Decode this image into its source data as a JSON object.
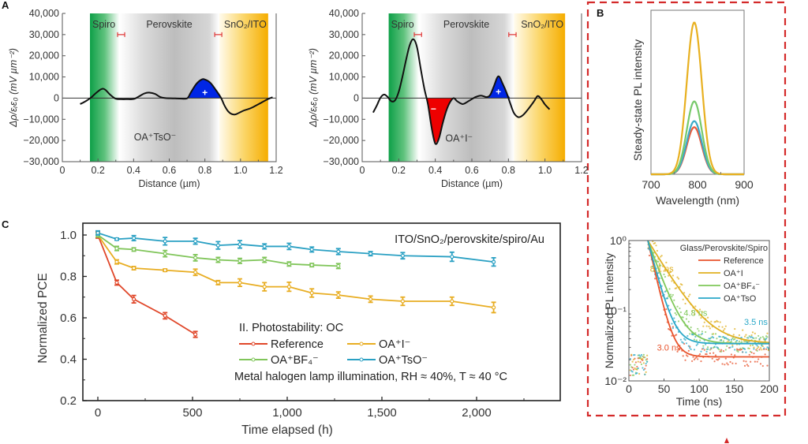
{
  "panels": {
    "A": "A",
    "B": "B",
    "C": "C"
  },
  "chart_data": [
    {
      "id": "A-left",
      "type": "line",
      "title": "",
      "xlabel": "Distance (µm)",
      "ylabel": "Δρ/εᵣε₀ (mV µm⁻²)",
      "xlim": [
        0,
        1.2
      ],
      "ylim": [
        -30000,
        40000
      ],
      "xticks": [
        "0",
        "0.2",
        "0.4",
        "0.6",
        "0.8",
        "1.0",
        "1.2"
      ],
      "yticks": [
        "40,000",
        "30,000",
        "20,000",
        "10,000",
        "0",
        "−10,000",
        "−20,000",
        "−30,000"
      ],
      "regions": [
        {
          "label": "Spiro",
          "from": 0.155,
          "to": 0.32,
          "color": "#1aa34a"
        },
        {
          "label": "Perovskite",
          "from": 0.32,
          "to": 0.88,
          "color": "#c8c8c8"
        },
        {
          "label": "SnO₂/ITO",
          "from": 0.88,
          "to": 1.155,
          "color": "#f5b800"
        }
      ],
      "error_bars": [
        {
          "x": 0.33,
          "y": 30000,
          "halfwidth": 0.02
        },
        {
          "x": 0.875,
          "y": 30000,
          "halfwidth": 0.02
        }
      ],
      "annotation": "OA⁺TsO⁻",
      "charge_labels": [
        {
          "text": "+",
          "x": 0.8,
          "y": 2500,
          "fill": "#0026e6"
        }
      ],
      "series": [
        {
          "name": "profile",
          "x": [
            0.1,
            0.13,
            0.16,
            0.19,
            0.22,
            0.24,
            0.27,
            0.3,
            0.33,
            0.36,
            0.4,
            0.43,
            0.46,
            0.49,
            0.52,
            0.55,
            0.58,
            0.62,
            0.66,
            0.7,
            0.72,
            0.75,
            0.78,
            0.8,
            0.83,
            0.86,
            0.89,
            0.91,
            0.93,
            0.95,
            0.97,
            0.99,
            1.02,
            1.05,
            1.08,
            1.12,
            1.15,
            1.18
          ],
          "y": [
            -2800,
            -1500,
            200,
            2500,
            4300,
            4000,
            1500,
            -300,
            -500,
            -500,
            -400,
            800,
            2200,
            2600,
            2000,
            500,
            0,
            -100,
            -200,
            -100,
            2500,
            6500,
            8700,
            8800,
            7300,
            4000,
            200,
            -3500,
            -6200,
            -7500,
            -7700,
            -7000,
            -5800,
            -5000,
            -3800,
            -2000,
            -600,
            400
          ]
        }
      ],
      "filled_region": {
        "from": 0.7,
        "to": 0.9,
        "sign": "positive",
        "color": "#0026e6"
      }
    },
    {
      "id": "A-right",
      "type": "line",
      "xlabel": "Distance (µm)",
      "ylabel": "Δρ/εᵣε₀ (mV µm⁻²)",
      "xlim": [
        0,
        1.2
      ],
      "ylim": [
        -30000,
        40000
      ],
      "xticks": [
        "0",
        "0.2",
        "0.4",
        "0.6",
        "0.8",
        "1.0",
        "1.2"
      ],
      "yticks": [
        "40,000",
        "30,000",
        "20,000",
        "10,000",
        "0",
        "−10,000",
        "−20,000",
        "−30,000"
      ],
      "regions": [
        {
          "label": "Spiro",
          "from": 0.145,
          "to": 0.31,
          "color": "#1aa34a"
        },
        {
          "label": "Perovskite",
          "from": 0.31,
          "to": 0.83,
          "color": "#c8c8c8"
        },
        {
          "label": "SnO₂/ITO",
          "from": 0.83,
          "to": 1.11,
          "color": "#f5b800"
        }
      ],
      "error_bars": [
        {
          "x": 0.305,
          "y": 30000,
          "halfwidth": 0.02
        },
        {
          "x": 0.822,
          "y": 30000,
          "halfwidth": 0.02
        }
      ],
      "annotation": "OA⁺I⁻",
      "charge_labels": [
        {
          "text": "−",
          "x": 0.39,
          "y": -5000,
          "fill": "#e00000"
        },
        {
          "text": "+",
          "x": 0.745,
          "y": 3000,
          "fill": "#0026e6"
        }
      ],
      "series": [
        {
          "name": "profile",
          "x": [
            0.06,
            0.08,
            0.1,
            0.12,
            0.14,
            0.16,
            0.18,
            0.2,
            0.22,
            0.24,
            0.26,
            0.28,
            0.3,
            0.32,
            0.34,
            0.36,
            0.38,
            0.4,
            0.42,
            0.44,
            0.46,
            0.48,
            0.5,
            0.52,
            0.55,
            0.58,
            0.62,
            0.65,
            0.68,
            0.7,
            0.72,
            0.745,
            0.77,
            0.79,
            0.81,
            0.83,
            0.855,
            0.88,
            0.91,
            0.94,
            0.96,
            0.98,
            1.0,
            1.025
          ],
          "y": [
            -6800,
            -3500,
            200,
            1700,
            500,
            -1500,
            -1000,
            3000,
            10000,
            18000,
            25000,
            27800,
            24000,
            14000,
            4500,
            -3000,
            -14000,
            -21500,
            -19000,
            -12000,
            -6000,
            -2000,
            0,
            -1500,
            -2800,
            -1500,
            500,
            1200,
            500,
            1500,
            5500,
            10300,
            6500,
            2500,
            -2500,
            -7000,
            -9000,
            -8000,
            -5000,
            -1500,
            1000,
            -500,
            -3000,
            -5300
          ]
        }
      ],
      "filled_regions": [
        {
          "from": 0.355,
          "to": 0.5,
          "sign": "negative",
          "color": "#ee0000"
        },
        {
          "from": 0.68,
          "to": 0.815,
          "sign": "positive",
          "color": "#0026e6"
        }
      ]
    },
    {
      "id": "B-top",
      "type": "line",
      "xlabel": "Wavelength (nm)",
      "ylabel": "Steady-state PL intensity",
      "xlim": [
        700,
        900
      ],
      "ylim": [
        0,
        1.08
      ],
      "xticks": [
        "700",
        "800",
        "900"
      ],
      "series": [
        {
          "name": "OA⁺I⁻",
          "color": "#e8b020",
          "peak_nm": 793,
          "peak": 1.0,
          "fwhm_nm": 38
        },
        {
          "name": "OA⁺BF₄⁻",
          "color": "#77c96a",
          "peak_nm": 793,
          "peak": 0.48,
          "fwhm_nm": 38
        },
        {
          "name": "OA⁺TsO⁻",
          "color": "#3aabc8",
          "peak_nm": 793,
          "peak": 0.35,
          "fwhm_nm": 38
        },
        {
          "name": "Reference",
          "color": "#ea5a3c",
          "peak_nm": 793,
          "peak": 0.31,
          "fwhm_nm": 38
        }
      ]
    },
    {
      "id": "B-bottom",
      "type": "scatter",
      "title": "Glass/Perovskite/Spiro",
      "xlabel": "Time (ns)",
      "ylabel": "Normalized PL intensity",
      "xlim": [
        0,
        200
      ],
      "ylim_log10": [
        -2,
        0
      ],
      "xticks": [
        "0",
        "50",
        "100",
        "150",
        "200"
      ],
      "yticks": [
        "10⁻²",
        "10⁻¹",
        "10⁰"
      ],
      "legend_position": "top-right",
      "series": [
        {
          "name": "Reference",
          "legend": "Reference",
          "color": "#e8532c",
          "tau_ns": 3.0,
          "tau_label": "3.0 ns",
          "baseline": 0.022
        },
        {
          "name": "OA⁺I",
          "legend": "OA⁺I",
          "color": "#e0b020",
          "tau_ns": 8.1,
          "tau_label": "8.1 ns",
          "baseline": 0.034
        },
        {
          "name": "OA⁺BF₄⁻",
          "legend": "OA⁺BF₄⁻",
          "color": "#7fc85a",
          "tau_ns": 4.8,
          "tau_label": "4.8 ns",
          "baseline": 0.034
        },
        {
          "name": "OA⁺TsO",
          "legend": "OA⁺TsO",
          "color": "#2aa8c8",
          "tau_ns": 3.5,
          "tau_label": "3.5 ns",
          "baseline": 0.034
        }
      ]
    },
    {
      "id": "C",
      "type": "line",
      "xlabel": "Time elapsed (h)",
      "ylabel": "Normalized PCE",
      "xlim": [
        -80,
        2280
      ],
      "ylim": [
        0.2,
        1.04
      ],
      "xticks": [
        "0",
        "500",
        "1,000",
        "1,500",
        "2,000"
      ],
      "yticks": [
        "0.2",
        "0.4",
        "0.6",
        "0.8",
        "1.0"
      ],
      "device_label": "ITO/SnO₂/perovskite/spiro/Au",
      "legend_title": "II. Photostability: OC",
      "conditions": "Metal halogen lamp illumination, RH ≈ 40%, T ≈ 40 °C",
      "series": [
        {
          "name": "Reference",
          "color": "#e0472a",
          "x": [
            0,
            100,
            190,
            355,
            515
          ],
          "y": [
            1.0,
            0.77,
            0.69,
            0.61,
            0.52
          ],
          "err": [
            0.015,
            0.012,
            0.018,
            0.015,
            0.014
          ]
        },
        {
          "name": "OA⁺I⁻",
          "color": "#e8ad22",
          "x": [
            0,
            100,
            190,
            355,
            515,
            635,
            750,
            880,
            1010,
            1130,
            1270,
            1440,
            1610,
            1870,
            2090
          ],
          "y": [
            1.0,
            0.87,
            0.84,
            0.83,
            0.82,
            0.77,
            0.77,
            0.75,
            0.75,
            0.72,
            0.71,
            0.69,
            0.68,
            0.68,
            0.65
          ],
          "err": [
            0.01,
            0.01,
            0.008,
            0.006,
            0.015,
            0.01,
            0.018,
            0.02,
            0.022,
            0.02,
            0.015,
            0.015,
            0.02,
            0.02,
            0.025
          ]
        },
        {
          "name": "OA⁺BF₄⁻",
          "color": "#80c55a",
          "x": [
            0,
            100,
            190,
            355,
            515,
            635,
            750,
            880,
            1010,
            1130,
            1270
          ],
          "y": [
            1.0,
            0.935,
            0.93,
            0.91,
            0.89,
            0.88,
            0.875,
            0.88,
            0.86,
            0.855,
            0.85
          ],
          "err": [
            0.01,
            0.01,
            0.008,
            0.015,
            0.015,
            0.012,
            0.012,
            0.012,
            0.01,
            0.008,
            0.012
          ]
        },
        {
          "name": "OA⁺TsO⁻",
          "color": "#2aa0c3",
          "x": [
            0,
            100,
            190,
            355,
            515,
            635,
            750,
            880,
            1010,
            1130,
            1270,
            1440,
            1610,
            1870,
            2090
          ],
          "y": [
            1.01,
            0.98,
            0.985,
            0.97,
            0.97,
            0.95,
            0.955,
            0.945,
            0.945,
            0.93,
            0.92,
            0.91,
            0.9,
            0.895,
            0.87
          ],
          "err": [
            0.01,
            0.005,
            0.012,
            0.018,
            0.014,
            0.018,
            0.018,
            0.012,
            0.015,
            0.012,
            0.014,
            0.01,
            0.015,
            0.022,
            0.02
          ]
        }
      ]
    }
  ]
}
